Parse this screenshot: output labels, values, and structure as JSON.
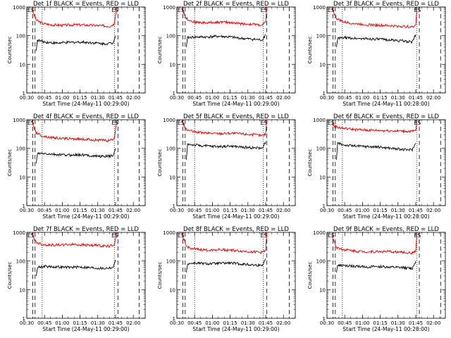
{
  "chart_data": [
    {
      "type": "line",
      "title": "Det 1f BLACK = Events, RED = LLD",
      "xlabel": "Start Time (24-May-11 00:29:00)",
      "ylabel": "Counts/sec",
      "y_scale": "log",
      "ylim": [
        1,
        1000
      ],
      "y_ticks": [
        "1",
        "10",
        "100",
        "1000"
      ],
      "xlim": [
        "00:30",
        "02:10"
      ],
      "x_ticks": [
        "00:30",
        "00:45",
        "01:00",
        "01:15",
        "01:30",
        "01:45",
        "02:00"
      ],
      "markers": [
        "ES",
        "ES"
      ],
      "series": [
        {
          "name": "LLD",
          "color": "#e00000",
          "x": [
            "00:34",
            "00:38",
            "00:43",
            "00:50",
            "01:00",
            "01:10",
            "01:20",
            "01:30",
            "01:40",
            "01:44",
            "01:46"
          ],
          "values": [
            900,
            350,
            270,
            240,
            230,
            240,
            235,
            225,
            215,
            260,
            1000
          ]
        },
        {
          "name": "Events",
          "color": "#000000",
          "x": [
            "00:38",
            "00:39",
            "00:45",
            "00:55",
            "01:05",
            "01:15",
            "01:25",
            "01:35",
            "01:43",
            "01:45"
          ],
          "values": [
            30,
            70,
            60,
            55,
            58,
            60,
            57,
            52,
            55,
            100
          ]
        }
      ],
      "vlines_dashed": [
        "00:35",
        "00:37",
        "01:47",
        "02:05"
      ],
      "vlines_dotted": [
        "00:43",
        "01:44"
      ]
    },
    {
      "type": "line",
      "title": "Det 2f BLACK = Events, RED = LLD",
      "xlabel": "Start Time (24-May-11 00:29:00)",
      "ylabel": "Counts/sec",
      "y_scale": "log",
      "ylim": [
        1,
        1000
      ],
      "y_ticks": [
        "1",
        "10",
        "100",
        "1000"
      ],
      "xlim": [
        "00:30",
        "02:10"
      ],
      "x_ticks": [
        "00:30",
        "00:45",
        "01:00",
        "01:15",
        "01:30",
        "01:45",
        "02:00"
      ],
      "markers": [
        "ES",
        "ES"
      ],
      "series": [
        {
          "name": "LLD",
          "color": "#e00000",
          "x": [
            "00:34",
            "00:38",
            "00:44",
            "00:55",
            "01:05",
            "01:15",
            "01:25",
            "01:35",
            "01:42",
            "01:45",
            "01:46"
          ],
          "values": [
            900,
            400,
            300,
            280,
            300,
            290,
            260,
            250,
            230,
            300,
            1000
          ]
        },
        {
          "name": "Events",
          "color": "#000000",
          "x": [
            "00:38",
            "00:39",
            "00:45",
            "00:55",
            "01:05",
            "01:15",
            "01:25",
            "01:35",
            "01:42",
            "01:45"
          ],
          "values": [
            40,
            85,
            90,
            90,
            95,
            90,
            80,
            75,
            70,
            110
          ]
        }
      ],
      "vlines_dashed": [
        "00:35",
        "00:37",
        "01:46",
        "02:05"
      ],
      "vlines_dotted": [
        "00:45",
        "01:43"
      ]
    },
    {
      "type": "line",
      "title": "Det 3f BLACK = Events, RED = LLD",
      "xlabel": "Start Time (24-May-11 00:28:00)",
      "ylabel": "Counts/sec",
      "y_scale": "log",
      "ylim": [
        1,
        1000
      ],
      "y_ticks": [
        "1",
        "10",
        "100",
        "1000"
      ],
      "xlim": [
        "00:30",
        "02:10"
      ],
      "x_ticks": [
        "00:30",
        "00:45",
        "01:00",
        "01:15",
        "01:30",
        "01:45",
        "02:00"
      ],
      "markers": [
        "ES",
        "ES"
      ],
      "series": [
        {
          "name": "LLD",
          "color": "#e00000",
          "x": [
            "00:34",
            "00:38",
            "00:44",
            "00:55",
            "01:05",
            "01:15",
            "01:25",
            "01:35",
            "01:42",
            "01:45",
            "01:46"
          ],
          "values": [
            950,
            400,
            300,
            260,
            240,
            230,
            220,
            210,
            200,
            240,
            900
          ]
        },
        {
          "name": "Events",
          "color": "#000000",
          "x": [
            "00:38",
            "00:39",
            "00:45",
            "00:55",
            "01:05",
            "01:15",
            "01:25",
            "01:35",
            "01:42",
            "01:45"
          ],
          "values": [
            40,
            80,
            85,
            80,
            78,
            75,
            70,
            65,
            60,
            110
          ]
        }
      ],
      "vlines_dashed": [
        "00:35",
        "00:37",
        "01:48",
        "02:06"
      ],
      "vlines_dotted": [
        "00:43",
        "01:46"
      ]
    },
    {
      "type": "line",
      "title": "Det 4f BLACK = Events, RED = LLD",
      "xlabel": "Start Time (24-May-11 00:29:00)",
      "ylabel": "Counts/sec",
      "y_scale": "log",
      "ylim": [
        1,
        1000
      ],
      "y_ticks": [
        "1",
        "10",
        "100",
        "1000"
      ],
      "xlim": [
        "00:30",
        "02:10"
      ],
      "x_ticks": [
        "00:30",
        "00:45",
        "01:00",
        "01:15",
        "01:30",
        "01:45",
        "02:00"
      ],
      "markers": [
        "ES",
        "ES"
      ],
      "series": [
        {
          "name": "LLD",
          "color": "#e00000",
          "x": [
            "00:34",
            "00:38",
            "00:43",
            "00:50",
            "01:00",
            "01:10",
            "01:20",
            "01:30",
            "01:40",
            "01:44",
            "01:46"
          ],
          "values": [
            900,
            350,
            270,
            240,
            220,
            215,
            205,
            195,
            185,
            230,
            900
          ]
        },
        {
          "name": "Events",
          "color": "#000000",
          "x": [
            "00:38",
            "00:39",
            "00:45",
            "00:55",
            "01:05",
            "01:15",
            "01:25",
            "01:35",
            "01:43",
            "01:45"
          ],
          "values": [
            30,
            65,
            65,
            60,
            58,
            60,
            55,
            52,
            55,
            100
          ]
        }
      ],
      "vlines_dashed": [
        "00:35",
        "00:37",
        "01:47",
        "02:05"
      ],
      "vlines_dotted": [
        "00:43",
        "01:44"
      ]
    },
    {
      "type": "line",
      "title": "Det 5f BLACK = Events, RED = LLD",
      "xlabel": "Start Time (24-May-11 00:29:00)",
      "ylabel": "Counts/sec",
      "y_scale": "log",
      "ylim": [
        1,
        1000
      ],
      "y_ticks": [
        "1",
        "10",
        "100",
        "1000"
      ],
      "xlim": [
        "00:30",
        "02:10"
      ],
      "x_ticks": [
        "00:30",
        "00:45",
        "01:00",
        "01:15",
        "01:30",
        "01:45",
        "02:00"
      ],
      "markers": [
        "ES",
        "ES"
      ],
      "series": [
        {
          "name": "LLD",
          "color": "#e00000",
          "x": [
            "00:34",
            "00:38",
            "00:44",
            "00:55",
            "01:05",
            "01:15",
            "01:25",
            "01:35",
            "01:42",
            "01:45",
            "01:46"
          ],
          "values": [
            900,
            450,
            380,
            340,
            330,
            340,
            320,
            300,
            280,
            320,
            1000
          ]
        },
        {
          "name": "Events",
          "color": "#000000",
          "x": [
            "00:38",
            "00:39",
            "00:45",
            "00:55",
            "01:05",
            "01:15",
            "01:25",
            "01:35",
            "01:42",
            "01:45"
          ],
          "values": [
            40,
            140,
            130,
            120,
            115,
            120,
            110,
            105,
            100,
            170
          ]
        }
      ],
      "vlines_dashed": [
        "00:35",
        "00:37",
        "01:46",
        "02:05"
      ],
      "vlines_dotted": [
        "00:45",
        "01:43"
      ]
    },
    {
      "type": "line",
      "title": "Det 6f BLACK = Events, RED = LLD",
      "xlabel": "Start Time (24-May-11 00:28:00)",
      "ylabel": "Counts/sec",
      "y_scale": "log",
      "ylim": [
        1,
        1000
      ],
      "y_ticks": [
        "1",
        "10",
        "100",
        "1000"
      ],
      "xlim": [
        "00:30",
        "02:10"
      ],
      "x_ticks": [
        "00:30",
        "00:45",
        "01:00",
        "01:15",
        "01:30",
        "01:45",
        "02:00"
      ],
      "markers": [
        "ES",
        "ES"
      ],
      "series": [
        {
          "name": "LLD",
          "color": "#e00000",
          "x": [
            "00:34",
            "00:38",
            "00:44",
            "00:55",
            "01:05",
            "01:15",
            "01:25",
            "01:35",
            "01:42",
            "01:45",
            "01:46"
          ],
          "values": [
            700,
            560,
            500,
            450,
            430,
            420,
            410,
            400,
            390,
            420,
            900
          ]
        },
        {
          "name": "Events",
          "color": "#000000",
          "x": [
            "00:38",
            "00:39",
            "00:45",
            "00:55",
            "01:05",
            "01:15",
            "01:25",
            "01:35",
            "01:42",
            "01:45"
          ],
          "values": [
            40,
            150,
            130,
            120,
            115,
            110,
            100,
            90,
            90,
            150
          ]
        }
      ],
      "vlines_dashed": [
        "00:35",
        "00:37",
        "01:48",
        "02:06"
      ],
      "vlines_dotted": [
        "00:43",
        "01:46"
      ]
    },
    {
      "type": "line",
      "title": "Det 7f BLACK = Events, RED = LLD",
      "xlabel": "Start Time (24-May-11 00:29:00)",
      "ylabel": "Counts/sec",
      "y_scale": "log",
      "ylim": [
        1,
        1000
      ],
      "y_ticks": [
        "1",
        "10",
        "100",
        "1000"
      ],
      "xlim": [
        "00:30",
        "02:10"
      ],
      "x_ticks": [
        "00:30",
        "00:45",
        "01:00",
        "01:15",
        "01:30",
        "01:45",
        "02:00"
      ],
      "markers": [
        "ES",
        "ES"
      ],
      "series": [
        {
          "name": "LLD",
          "color": "#e00000",
          "x": [
            "00:34",
            "00:38",
            "00:43",
            "00:50",
            "01:00",
            "01:10",
            "01:20",
            "01:30",
            "01:40",
            "01:44",
            "01:46"
          ],
          "values": [
            900,
            450,
            380,
            360,
            370,
            380,
            360,
            350,
            330,
            380,
            1000
          ]
        },
        {
          "name": "Events",
          "color": "#000000",
          "x": [
            "00:38",
            "00:39",
            "00:45",
            "00:55",
            "01:05",
            "01:15",
            "01:25",
            "01:35",
            "01:43",
            "01:45"
          ],
          "values": [
            30,
            60,
            65,
            62,
            60,
            62,
            58,
            55,
            60,
            110
          ]
        }
      ],
      "vlines_dashed": [
        "00:35",
        "00:37",
        "01:47",
        "02:05"
      ],
      "vlines_dotted": [
        "00:43",
        "01:44"
      ]
    },
    {
      "type": "line",
      "title": "Det 8f BLACK = Events, RED = LLD",
      "xlabel": "Start Time (24-May-11 00:29:00)",
      "ylabel": "Counts/sec",
      "y_scale": "log",
      "ylim": [
        1,
        1000
      ],
      "y_ticks": [
        "1",
        "10",
        "100",
        "1000"
      ],
      "xlim": [
        "00:30",
        "02:10"
      ],
      "x_ticks": [
        "00:30",
        "00:45",
        "01:00",
        "01:15",
        "01:30",
        "01:45",
        "02:00"
      ],
      "markers": [
        "ES",
        "ES"
      ],
      "series": [
        {
          "name": "LLD",
          "color": "#e00000",
          "x": [
            "00:34",
            "00:38",
            "00:44",
            "00:55",
            "01:05",
            "01:15",
            "01:25",
            "01:35",
            "01:42",
            "01:45",
            "01:46"
          ],
          "values": [
            900,
            320,
            260,
            240,
            250,
            240,
            220,
            210,
            200,
            250,
            1000
          ]
        },
        {
          "name": "Events",
          "color": "#000000",
          "x": [
            "00:38",
            "00:39",
            "00:45",
            "00:55",
            "01:05",
            "01:15",
            "01:25",
            "01:35",
            "01:42",
            "01:45"
          ],
          "values": [
            40,
            80,
            85,
            80,
            82,
            85,
            78,
            72,
            70,
            120
          ]
        }
      ],
      "vlines_dashed": [
        "00:35",
        "00:37",
        "01:46",
        "02:05"
      ],
      "vlines_dotted": [
        "00:45",
        "01:43"
      ]
    },
    {
      "type": "line",
      "title": "Det 9f BLACK = Events, RED = LLD",
      "xlabel": "Start Time (24-May-11 00:28:00)",
      "ylabel": "Counts/sec",
      "y_scale": "log",
      "ylim": [
        1,
        1000
      ],
      "y_ticks": [
        "1",
        "10",
        "100",
        "1000"
      ],
      "xlim": [
        "00:30",
        "02:10"
      ],
      "x_ticks": [
        "00:30",
        "00:45",
        "01:00",
        "01:15",
        "01:30",
        "01:45",
        "02:00"
      ],
      "markers": [
        "ES",
        "ES"
      ],
      "series": [
        {
          "name": "LLD",
          "color": "#e00000",
          "x": [
            "00:34",
            "00:38",
            "00:44",
            "00:55",
            "01:05",
            "01:15",
            "01:25",
            "01:35",
            "01:42",
            "01:45",
            "01:46"
          ],
          "values": [
            800,
            300,
            250,
            220,
            210,
            215,
            210,
            200,
            190,
            230,
            900
          ]
        },
        {
          "name": "Events",
          "color": "#000000",
          "x": [
            "00:38",
            "00:39",
            "00:45",
            "00:55",
            "01:05",
            "01:15",
            "01:25",
            "01:35",
            "01:42",
            "01:45"
          ],
          "values": [
            40,
            70,
            68,
            65,
            62,
            64,
            60,
            58,
            55,
            100
          ]
        }
      ],
      "vlines_dashed": [
        "00:35",
        "00:37",
        "01:48",
        "02:06"
      ],
      "vlines_dotted": [
        "00:43",
        "01:46"
      ]
    }
  ]
}
